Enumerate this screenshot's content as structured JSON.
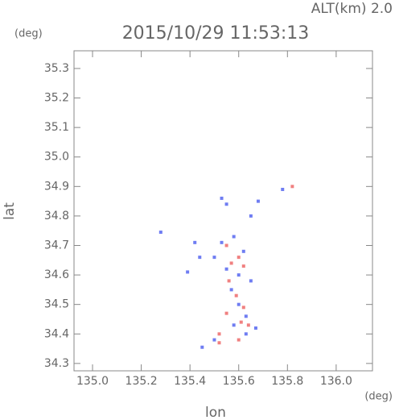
{
  "chart_data": {
    "type": "scatter",
    "title": "2015/10/29 11:53:13",
    "annotation": "ALT(km) 2.0",
    "y_unit": "(deg)",
    "x_unit": "(deg)",
    "x_label": "lon",
    "y_label": "lat",
    "xlim": [
      134.924,
      136.149
    ],
    "ylim": [
      34.275,
      35.36
    ],
    "xticks": [
      {
        "value": 135.0,
        "label": "135.0"
      },
      135.2,
      135.4,
      135.6,
      135.8,
      {
        "value": 136.0,
        "label": "136.0"
      }
    ],
    "yticks": [
      35.3,
      35.2,
      35.1,
      {
        "value": 35.0,
        "label": "35.0"
      },
      34.9,
      34.8,
      34.7,
      34.6,
      34.5,
      34.4,
      34.3
    ],
    "series": [
      {
        "color": "#6f7df2",
        "x": [
          135.53,
          135.55,
          135.65,
          135.68,
          135.53,
          135.58,
          135.62,
          135.5,
          135.55,
          135.6,
          135.65,
          135.57,
          135.6,
          135.63,
          135.58,
          135.63,
          135.5,
          135.45,
          135.28,
          135.42,
          135.44,
          135.67,
          135.39,
          135.78
        ],
        "y": [
          34.86,
          34.84,
          34.8,
          34.85,
          34.71,
          34.73,
          34.68,
          34.66,
          34.62,
          34.6,
          34.58,
          34.55,
          34.5,
          34.46,
          34.43,
          34.4,
          34.38,
          34.355,
          34.745,
          34.71,
          34.66,
          34.42,
          34.61,
          34.89
        ]
      },
      {
        "color": "#f08080",
        "x": [
          135.55,
          135.6,
          135.57,
          135.62,
          135.56,
          135.59,
          135.55,
          135.61,
          135.62,
          135.52,
          135.6,
          135.82,
          135.52,
          135.64
        ],
        "y": [
          34.7,
          34.66,
          34.64,
          34.63,
          34.58,
          34.53,
          34.47,
          34.44,
          34.49,
          34.37,
          34.38,
          34.9,
          34.4,
          34.43
        ]
      }
    ]
  }
}
